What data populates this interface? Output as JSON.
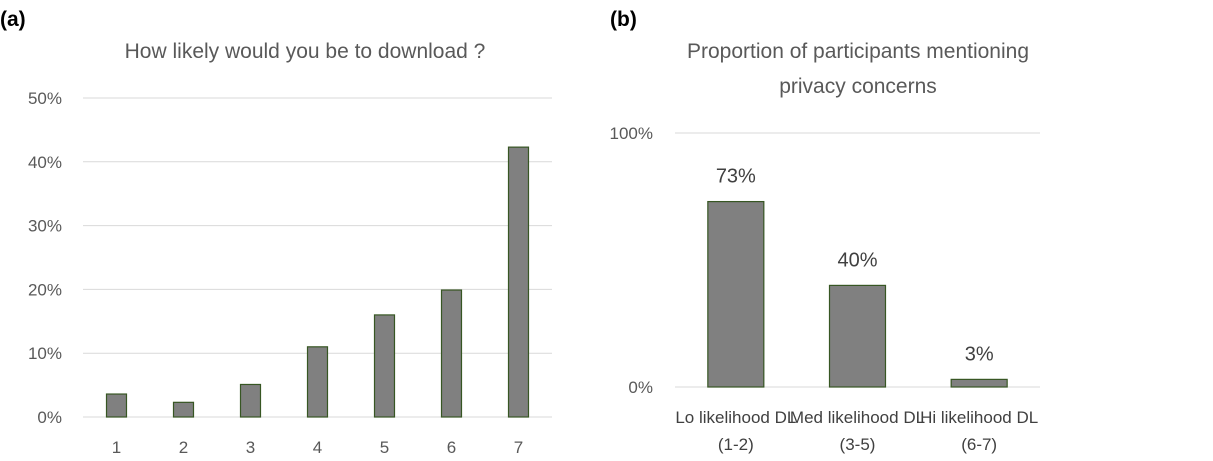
{
  "chart_data": [
    {
      "panel_label": "(a)",
      "type": "bar",
      "title": "How likely would you be to download ?",
      "categories": [
        "1",
        "2",
        "3",
        "4",
        "5",
        "6",
        "7"
      ],
      "values": [
        3.6,
        2.3,
        5.1,
        11.0,
        16.0,
        19.9,
        42.3
      ],
      "ylim": [
        0,
        50
      ],
      "yticks": [
        0,
        10,
        20,
        30,
        40,
        50
      ],
      "ytick_labels": [
        "0%",
        "10%",
        "20%",
        "30%",
        "40%",
        "50%"
      ],
      "grid": true,
      "bar_fill": "#808080",
      "bar_stroke": "#375623"
    },
    {
      "panel_label": "(b)",
      "type": "bar",
      "title_lines": [
        "Proportion of participants mentioning",
        "privacy concerns"
      ],
      "categories": [
        [
          "Lo likelihood DL",
          "(1-2)"
        ],
        [
          "Med likelihood DL",
          "(3-5)"
        ],
        [
          "Hi likelihood DL",
          "(6-7)"
        ]
      ],
      "values": [
        73,
        40,
        3
      ],
      "data_labels": [
        "73%",
        "40%",
        "3%"
      ],
      "ylim": [
        0,
        100
      ],
      "yticks": [
        0,
        100
      ],
      "ytick_labels": [
        "0%",
        "100%"
      ],
      "grid": true,
      "bar_fill": "#808080",
      "bar_stroke": "#375623"
    }
  ]
}
